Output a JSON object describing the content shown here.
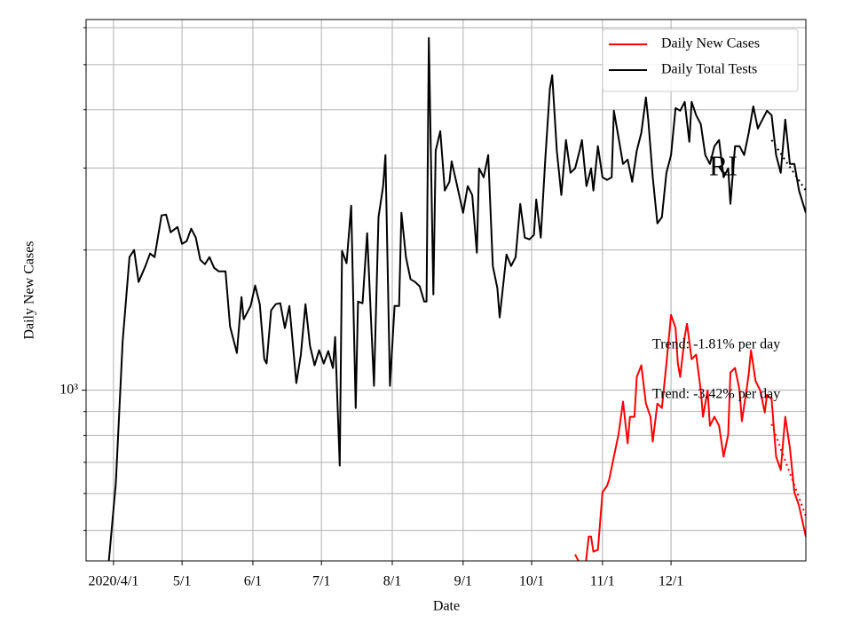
{
  "chart_data": {
    "type": "line",
    "label": "RI",
    "xlabel": "Date",
    "ylabel": "Daily New Cases",
    "log_y": true,
    "grid": true,
    "legend": "upper right",
    "xlim": [
      "3/20",
      "1/29"
    ],
    "xticks": [
      {
        "value": "4/1",
        "label": "2020/4/1"
      },
      "5/1",
      "6/1",
      "7/1",
      "8/1",
      "9/1",
      "10/1",
      "11/1",
      "12/1"
    ],
    "ylim": [
      430,
      6250
    ],
    "yticks": [
      {
        "value": 1000,
        "label": "10³"
      }
    ],
    "yminor_ticks": [
      500,
      600,
      700,
      800,
      900,
      2000,
      3000,
      4000,
      5000,
      6000
    ],
    "series": [
      {
        "name": "Daily New Cases",
        "color": "#ff0000",
        "x": [
          "10/20",
          "10/22",
          "10/24",
          "10/26",
          "10/27",
          "10/28",
          "10/30",
          "11/1",
          "11/3",
          "11/4",
          "11/6",
          "11/8",
          "11/10",
          "11/12",
          "11/13",
          "11/15",
          "11/16",
          "11/18",
          "11/20",
          "11/22",
          "11/23",
          "11/25",
          "11/27",
          "11/29",
          "12/1",
          "12/3",
          "12/4",
          "12/5",
          "12/7",
          "12/8",
          "12/10",
          "12/12",
          "12/14",
          "12/15",
          "12/17",
          "12/18",
          "12/20",
          "12/22",
          "12/24",
          "12/26",
          "12/27",
          "12/29",
          "12/31",
          "1/1",
          "1/3",
          "1/4",
          "1/5",
          "1/7",
          "1/9",
          "1/11",
          "1/12",
          "1/14",
          "1/16",
          "1/18",
          "1/20",
          "1/22",
          "1/24",
          "1/26",
          "1/29"
        ],
        "values": [
          444,
          425,
          398,
          485,
          485,
          450,
          454,
          604,
          623,
          645,
          720,
          803,
          945,
          769,
          877,
          877,
          1068,
          1131,
          936,
          877,
          776,
          936,
          916,
          1141,
          1451,
          1359,
          1141,
          1068,
          1301,
          1389,
          1166,
          1192,
          1000,
          877,
          1000,
          839,
          877,
          839,
          720,
          803,
          1092,
          1116,
          1000,
          858,
          1000,
          1082,
          1218,
          1045,
          1000,
          896,
          978,
          957,
          720,
          674,
          877,
          752,
          604,
          565,
          485
        ]
      },
      {
        "name": "Daily Total Tests",
        "color": "#000000",
        "x": [
          "3/30",
          "4/2",
          "4/5",
          "4/8",
          "4/10",
          "4/12",
          "4/15",
          "4/17",
          "4/19",
          "4/22",
          "4/24",
          "4/26",
          "4/29",
          "5/1",
          "5/3",
          "5/5",
          "5/7",
          "5/9",
          "5/11",
          "5/13",
          "5/15",
          "5/17",
          "5/20",
          "5/22",
          "5/25",
          "5/27",
          "5/28",
          "5/31",
          "6/2",
          "6/4",
          "6/6",
          "6/7",
          "6/9",
          "6/11",
          "6/13",
          "6/15",
          "6/17",
          "6/20",
          "6/22",
          "6/24",
          "6/26",
          "6/28",
          "6/30",
          "7/2",
          "7/4",
          "7/6",
          "7/7",
          "7/9",
          "7/10",
          "7/12",
          "7/14",
          "7/16",
          "7/17",
          "7/19",
          "7/21",
          "7/24",
          "7/26",
          "7/28",
          "7/29",
          "7/31",
          "8/2",
          "8/4",
          "8/5",
          "8/7",
          "8/9",
          "8/11",
          "8/13",
          "8/15",
          "8/16",
          "8/17",
          "8/19",
          "8/20",
          "8/22",
          "8/24",
          "8/26",
          "8/27",
          "8/29",
          "9/1",
          "9/3",
          "9/5",
          "9/7",
          "9/8",
          "9/10",
          "9/12",
          "9/14",
          "9/16",
          "9/17",
          "9/20",
          "9/22",
          "9/24",
          "9/26",
          "9/28",
          "9/30",
          "10/2",
          "10/3",
          "10/5",
          "10/7",
          "10/9",
          "10/10",
          "10/12",
          "10/14",
          "10/16",
          "10/18",
          "10/20",
          "10/22",
          "10/23",
          "10/25",
          "10/27",
          "10/28",
          "10/30",
          "11/1",
          "11/3",
          "11/5",
          "11/6",
          "11/8",
          "11/10",
          "11/12",
          "11/14",
          "11/16",
          "11/18",
          "11/20",
          "11/21",
          "11/23",
          "11/25",
          "11/27",
          "11/29",
          "12/1",
          "12/3",
          "12/5",
          "12/7",
          "12/9",
          "12/10",
          "12/12",
          "12/14",
          "12/16",
          "12/18",
          "12/20",
          "12/22",
          "12/24",
          "12/26",
          "12/27",
          "12/29",
          "12/31",
          "1/2",
          "1/4",
          "1/6",
          "1/8",
          "1/10",
          "1/12",
          "1/14",
          "1/16",
          "1/18",
          "1/20",
          "1/22",
          "1/24",
          "1/26",
          "1/29"
        ],
        "values": [
          431,
          631,
          1273,
          1931,
          2000,
          1708,
          1848,
          1965,
          1931,
          2373,
          2383,
          2183,
          2241,
          2062,
          2089,
          2222,
          2127,
          1905,
          1864,
          1931,
          1832,
          1800,
          1800,
          1371,
          1202,
          1585,
          1420,
          1517,
          1678,
          1530,
          1166,
          1141,
          1484,
          1530,
          1537,
          1359,
          1517,
          1036,
          1192,
          1530,
          1245,
          1131,
          1218,
          1141,
          1213,
          1116,
          1301,
          689,
          1991,
          1873,
          2490,
          916,
          1550,
          1537,
          2174,
          1022,
          2352,
          2743,
          3198,
          1022,
          1517,
          1517,
          2404,
          1931,
          1730,
          1708,
          1671,
          1550,
          1550,
          5704,
          1606,
          3268,
          3599,
          2683,
          2803,
          3100,
          2803,
          2404,
          2743,
          2624,
          1974,
          2994,
          2865,
          3198,
          1848,
          1656,
          1433,
          1956,
          1848,
          1931,
          2512,
          2127,
          2108,
          2154,
          2567,
          2127,
          3155,
          4443,
          4746,
          3268,
          2624,
          3444,
          2929,
          2994,
          3268,
          3444,
          2743,
          2994,
          2683,
          3341,
          2865,
          2828,
          2865,
          3981,
          3490,
          3060,
          3128,
          2803,
          3268,
          3568,
          4252,
          3811,
          2865,
          2281,
          2352,
          2929,
          3198,
          4034,
          3981,
          4159,
          3414,
          4159,
          3895,
          3728,
          3198,
          3060,
          3341,
          3444,
          2865,
          2994,
          2512,
          3341,
          3341,
          3198,
          3568,
          4070,
          3647,
          3811,
          3981,
          3895,
          3198,
          2929,
          3811,
          3060,
          3060,
          2683,
          2404
        ]
      }
    ],
    "trend_lines": [
      {
        "color": "#000000",
        "x": [
          "1/14",
          "1/29"
        ],
        "values": [
          3444,
          2683
        ]
      },
      {
        "color": "#ff0000",
        "x": [
          "1/14",
          "1/29"
        ],
        "values": [
          846,
          537
        ]
      }
    ],
    "annotations": [
      "Trend: -1.81% per day",
      "Trend: -3.42% per day"
    ]
  }
}
